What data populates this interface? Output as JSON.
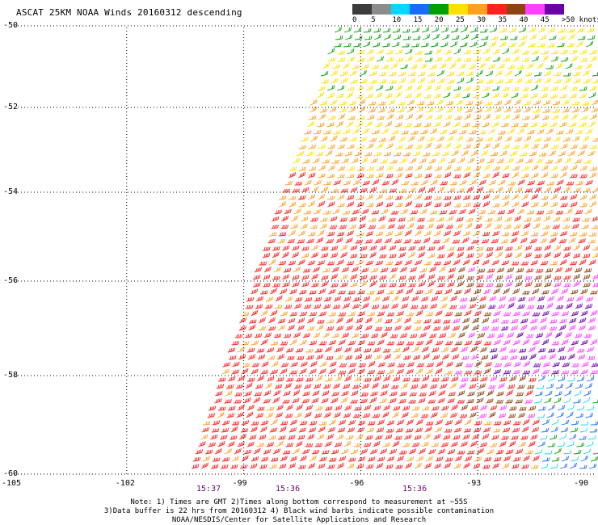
{
  "title": "ASCAT 25KM NOAA Winds 20160312 descending",
  "color_scale": {
    "labels": [
      "0",
      "5",
      "10",
      "15",
      "20",
      "25",
      "30",
      "35",
      "40",
      "45",
      ">50 knots"
    ],
    "colors": [
      "#3c3c3c",
      "#8c8c8c",
      "#00d8ff",
      "#1a6cff",
      "#00a000",
      "#ffe000",
      "#ffa020",
      "#ff2020",
      "#8b4513",
      "#ff40ff",
      "#6a00a8"
    ]
  },
  "map": {
    "lon_ticks": [
      "-105",
      "-102",
      "-99",
      "-96",
      "-93",
      "-90"
    ],
    "lat_ticks": [
      "-50",
      "-52",
      "-54",
      "-56",
      "-58",
      "-60"
    ],
    "lon_range": [
      -105,
      -90
    ],
    "lat_range": [
      -60,
      -50
    ],
    "grid": "dotted",
    "time_labels": [
      "15:37",
      "15:36",
      "15:36"
    ]
  },
  "notes": [
    "Note: 1) Times are GMT 2)Times along bottom correspond to measurement at ~55S",
    "3)Data buffer is 22 hrs from 20160312 4) Black wind barbs indicate possible contamination",
    "NOAA/NESDIS/Center for Satellite Applications and Research"
  ]
}
